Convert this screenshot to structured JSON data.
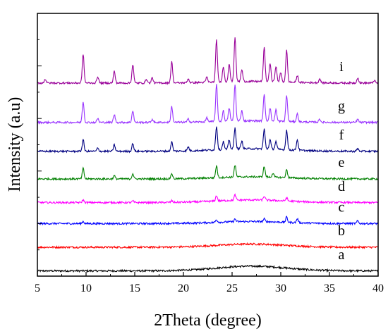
{
  "chart_data": {
    "type": "line",
    "xlabel": "2Theta (degree)",
    "ylabel": "Intensity (a.u)",
    "xlim": [
      5,
      40
    ],
    "ylim": [
      0,
      1
    ],
    "x_ticks": [
      5,
      10,
      15,
      20,
      25,
      30,
      35,
      40
    ],
    "y_ticks_shown": false,
    "grid": false,
    "legend": "labels at right end of each trace",
    "series": [
      {
        "name": "a",
        "color": "#000000",
        "baseline": 0.02,
        "amorphous_hump": {
          "center": 27,
          "height": 0.018,
          "width": 5
        },
        "peaks": []
      },
      {
        "name": "b",
        "color": "#ff0000",
        "baseline": 0.11,
        "amorphous_hump": {
          "center": 27,
          "height": 0.012,
          "width": 5
        },
        "peaks": []
      },
      {
        "name": "c",
        "color": "#0000ff",
        "baseline": 0.2,
        "amorphous_hump": {
          "center": 27,
          "height": 0.008,
          "width": 5
        },
        "peaks": [
          {
            "x": 9.7,
            "h": 0.008
          },
          {
            "x": 23.4,
            "h": 0.01
          },
          {
            "x": 25.3,
            "h": 0.01
          },
          {
            "x": 28.3,
            "h": 0.01
          },
          {
            "x": 30.6,
            "h": 0.02
          },
          {
            "x": 31.7,
            "h": 0.015
          },
          {
            "x": 37.9,
            "h": 0.01
          }
        ]
      },
      {
        "name": "d",
        "color": "#ff00ff",
        "baseline": 0.28,
        "amorphous_hump": {
          "center": 27,
          "height": 0.01,
          "width": 5
        },
        "peaks": [
          {
            "x": 9.7,
            "h": 0.01
          },
          {
            "x": 14.8,
            "h": 0.006
          },
          {
            "x": 18.8,
            "h": 0.006
          },
          {
            "x": 23.4,
            "h": 0.02
          },
          {
            "x": 25.3,
            "h": 0.02
          },
          {
            "x": 28.3,
            "h": 0.015
          },
          {
            "x": 30.6,
            "h": 0.012
          }
        ]
      },
      {
        "name": "e",
        "color": "#008000",
        "baseline": 0.37,
        "amorphous_hump": {
          "center": 27,
          "height": 0.008,
          "width": 5
        },
        "peaks": [
          {
            "x": 9.7,
            "h": 0.04
          },
          {
            "x": 12.9,
            "h": 0.012
          },
          {
            "x": 14.8,
            "h": 0.02
          },
          {
            "x": 18.8,
            "h": 0.02
          },
          {
            "x": 23.4,
            "h": 0.045
          },
          {
            "x": 25.3,
            "h": 0.045
          },
          {
            "x": 28.3,
            "h": 0.04
          },
          {
            "x": 29.2,
            "h": 0.015
          },
          {
            "x": 30.6,
            "h": 0.03
          }
        ]
      },
      {
        "name": "f",
        "color": "#000080",
        "baseline": 0.475,
        "amorphous_hump": {
          "center": 27,
          "height": 0.01,
          "width": 5
        },
        "peaks": [
          {
            "x": 9.7,
            "h": 0.045
          },
          {
            "x": 11.2,
            "h": 0.012
          },
          {
            "x": 12.9,
            "h": 0.025
          },
          {
            "x": 14.8,
            "h": 0.03
          },
          {
            "x": 18.8,
            "h": 0.035
          },
          {
            "x": 20.5,
            "h": 0.015
          },
          {
            "x": 23.4,
            "h": 0.09
          },
          {
            "x": 24.1,
            "h": 0.03
          },
          {
            "x": 24.7,
            "h": 0.035
          },
          {
            "x": 25.3,
            "h": 0.08
          },
          {
            "x": 26.0,
            "h": 0.03
          },
          {
            "x": 28.3,
            "h": 0.075
          },
          {
            "x": 28.9,
            "h": 0.035
          },
          {
            "x": 29.5,
            "h": 0.03
          },
          {
            "x": 30.6,
            "h": 0.075
          },
          {
            "x": 31.7,
            "h": 0.04
          },
          {
            "x": 37.9,
            "h": 0.01
          }
        ]
      },
      {
        "name": "g",
        "color": "#9933ff",
        "baseline": 0.585,
        "amorphous_hump": {
          "center": 27,
          "height": 0.006,
          "width": 5
        },
        "peaks": [
          {
            "x": 9.7,
            "h": 0.08
          },
          {
            "x": 11.2,
            "h": 0.015
          },
          {
            "x": 12.9,
            "h": 0.03
          },
          {
            "x": 14.8,
            "h": 0.045
          },
          {
            "x": 16.8,
            "h": 0.012
          },
          {
            "x": 18.8,
            "h": 0.06
          },
          {
            "x": 20.5,
            "h": 0.012
          },
          {
            "x": 22.4,
            "h": 0.015
          },
          {
            "x": 23.4,
            "h": 0.14
          },
          {
            "x": 24.1,
            "h": 0.04
          },
          {
            "x": 24.7,
            "h": 0.05
          },
          {
            "x": 25.3,
            "h": 0.14
          },
          {
            "x": 26.0,
            "h": 0.04
          },
          {
            "x": 28.3,
            "h": 0.1
          },
          {
            "x": 28.9,
            "h": 0.05
          },
          {
            "x": 29.5,
            "h": 0.045
          },
          {
            "x": 30.6,
            "h": 0.1
          },
          {
            "x": 31.7,
            "h": 0.03
          },
          {
            "x": 34.0,
            "h": 0.012
          },
          {
            "x": 37.9,
            "h": 0.012
          }
        ]
      },
      {
        "name": "i",
        "color": "#990099",
        "baseline": 0.735,
        "amorphous_hump": {
          "center": 27,
          "height": 0.006,
          "width": 5
        },
        "peaks": [
          {
            "x": 5.8,
            "h": 0.015
          },
          {
            "x": 9.7,
            "h": 0.11
          },
          {
            "x": 11.2,
            "h": 0.025
          },
          {
            "x": 12.9,
            "h": 0.045
          },
          {
            "x": 14.8,
            "h": 0.07
          },
          {
            "x": 16.2,
            "h": 0.015
          },
          {
            "x": 16.8,
            "h": 0.02
          },
          {
            "x": 18.8,
            "h": 0.08
          },
          {
            "x": 20.5,
            "h": 0.015
          },
          {
            "x": 22.4,
            "h": 0.02
          },
          {
            "x": 23.4,
            "h": 0.16
          },
          {
            "x": 24.1,
            "h": 0.06
          },
          {
            "x": 24.7,
            "h": 0.07
          },
          {
            "x": 25.3,
            "h": 0.17
          },
          {
            "x": 26.0,
            "h": 0.045
          },
          {
            "x": 28.3,
            "h": 0.13
          },
          {
            "x": 28.9,
            "h": 0.07
          },
          {
            "x": 29.5,
            "h": 0.06
          },
          {
            "x": 30.0,
            "h": 0.035
          },
          {
            "x": 30.6,
            "h": 0.12
          },
          {
            "x": 31.7,
            "h": 0.025
          },
          {
            "x": 34.0,
            "h": 0.015
          },
          {
            "x": 37.9,
            "h": 0.02
          },
          {
            "x": 39.6,
            "h": 0.01
          }
        ]
      }
    ]
  }
}
